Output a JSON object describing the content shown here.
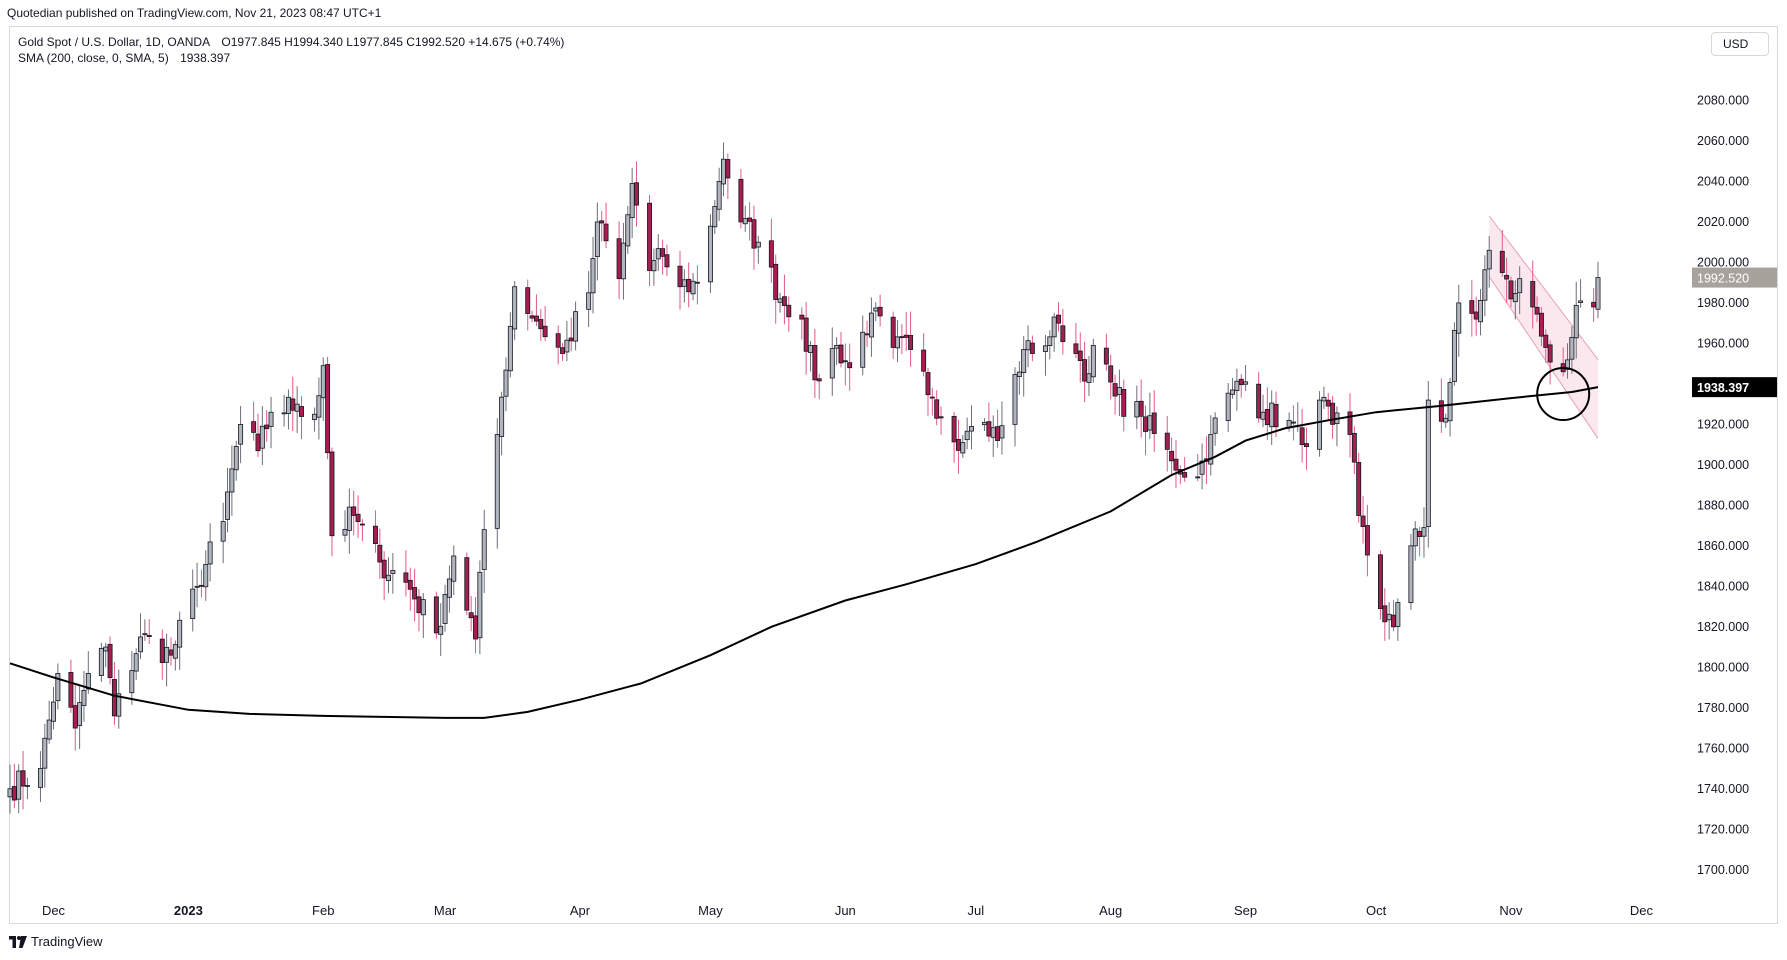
{
  "header": {
    "published_line": "Quotedian published on TradingView.com, Nov 21, 2023 08:47 UTC+1"
  },
  "legend": {
    "symbol_line": "Gold Spot / U.S. Dollar, 1D, OANDA",
    "ohlc": {
      "open": "O1977.845",
      "high": "H1994.340",
      "low": "L1977.845",
      "close": "C1992.520",
      "change": "+14.675 (+0.74%)"
    },
    "indicator_line": "SMA (200, close, 0, SMA, 5)",
    "indicator_value": "1938.397"
  },
  "currency_button": {
    "label": "USD"
  },
  "footer": {
    "brand": "TradingView"
  },
  "colors": {
    "up_body": "#b2b5be",
    "down_body": "#a61e4d",
    "down_wick": "#e05a88",
    "outline": "#131722",
    "sma": "#000000",
    "channel_fill": "#f8d5e0",
    "channel_line": "#e6a0b6",
    "last_price_bg": "#a8a29c",
    "sma_label_bg": "#000000"
  },
  "chart_data": {
    "type": "candlestick",
    "title": "Gold Spot / U.S. Dollar, 1D, OANDA",
    "ylim": [
      1690,
      2100
    ],
    "y_ticks": [
      "1700.000",
      "1720.000",
      "1740.000",
      "1760.000",
      "1780.000",
      "1800.000",
      "1820.000",
      "1840.000",
      "1860.000",
      "1880.000",
      "1900.000",
      "1920.000",
      "1940.000",
      "1960.000",
      "1980.000",
      "2000.000",
      "2020.000",
      "2040.000",
      "2060.000",
      "2080.000"
    ],
    "x_labels": [
      "Dec",
      "2023",
      "Feb",
      "Mar",
      "Apr",
      "May",
      "Jun",
      "Jul",
      "Aug",
      "Sep",
      "Oct",
      "Nov",
      "Dec"
    ],
    "x_label_dates": [
      "2022-12-01",
      "2023-01-01",
      "2023-02-01",
      "2023-03-01",
      "2023-04-01",
      "2023-05-01",
      "2023-06-01",
      "2023-07-01",
      "2023-08-01",
      "2023-09-01",
      "2023-10-01",
      "2023-11-01",
      "2023-12-01"
    ],
    "date_range": [
      "2022-11-21",
      "2023-12-11"
    ],
    "price_anchors": [
      [
        "2022-11-21",
        1740
      ],
      [
        "2022-11-28",
        1750
      ],
      [
        "2022-12-02",
        1797
      ],
      [
        "2022-12-06",
        1770
      ],
      [
        "2022-12-09",
        1797
      ],
      [
        "2022-12-13",
        1810
      ],
      [
        "2022-12-15",
        1776
      ],
      [
        "2022-12-21",
        1815
      ],
      [
        "2022-12-28",
        1806
      ],
      [
        "2023-01-03",
        1840
      ],
      [
        "2023-01-09",
        1872
      ],
      [
        "2023-01-13",
        1920
      ],
      [
        "2023-01-17",
        1907
      ],
      [
        "2023-01-20",
        1926
      ],
      [
        "2023-01-26",
        1930
      ],
      [
        "2023-01-30",
        1925
      ],
      [
        "2023-02-01",
        1949
      ],
      [
        "2023-02-03",
        1865
      ],
      [
        "2023-02-08",
        1875
      ],
      [
        "2023-02-14",
        1852
      ],
      [
        "2023-02-20",
        1842
      ],
      [
        "2023-02-27",
        1817
      ],
      [
        "2023-03-01",
        1836
      ],
      [
        "2023-03-03",
        1855
      ],
      [
        "2023-03-08",
        1814
      ],
      [
        "2023-03-10",
        1868
      ],
      [
        "2023-03-13",
        1915
      ],
      [
        "2023-03-17",
        1988
      ],
      [
        "2023-03-22",
        1971
      ],
      [
        "2023-03-28",
        1955
      ],
      [
        "2023-04-03",
        1985
      ],
      [
        "2023-04-05",
        2020
      ],
      [
        "2023-04-10",
        1992
      ],
      [
        "2023-04-13",
        2039
      ],
      [
        "2023-04-17",
        1996
      ],
      [
        "2023-04-20",
        2003
      ],
      [
        "2023-04-24",
        1988
      ],
      [
        "2023-04-28",
        1990
      ],
      [
        "2023-05-03",
        2040
      ],
      [
        "2023-05-04",
        2051
      ],
      [
        "2023-05-08",
        2020
      ],
      [
        "2023-05-12",
        2010
      ],
      [
        "2023-05-17",
        1982
      ],
      [
        "2023-05-22",
        1972
      ],
      [
        "2023-05-25",
        1942
      ],
      [
        "2023-05-30",
        1959
      ],
      [
        "2023-06-02",
        1948
      ],
      [
        "2023-06-07",
        1975
      ],
      [
        "2023-06-12",
        1958
      ],
      [
        "2023-06-16",
        1957
      ],
      [
        "2023-06-21",
        1933
      ],
      [
        "2023-06-28",
        1911
      ],
      [
        "2023-06-30",
        1919
      ],
      [
        "2023-07-03",
        1921
      ],
      [
        "2023-07-06",
        1912
      ],
      [
        "2023-07-12",
        1957
      ],
      [
        "2023-07-14",
        1955
      ],
      [
        "2023-07-20",
        1970
      ],
      [
        "2023-07-24",
        1955
      ],
      [
        "2023-07-27",
        1945
      ],
      [
        "2023-07-28",
        1959
      ],
      [
        "2023-08-02",
        1934
      ],
      [
        "2023-08-08",
        1924
      ],
      [
        "2023-08-15",
        1902
      ],
      [
        "2023-08-21",
        1894
      ],
      [
        "2023-08-24",
        1915
      ],
      [
        "2023-08-29",
        1937
      ],
      [
        "2023-09-01",
        1941
      ],
      [
        "2023-09-05",
        1926
      ],
      [
        "2023-09-11",
        1922
      ],
      [
        "2023-09-14",
        1910
      ],
      [
        "2023-09-18",
        1932
      ],
      [
        "2023-09-21",
        1920
      ],
      [
        "2023-09-25",
        1915
      ],
      [
        "2023-09-27",
        1875
      ],
      [
        "2023-10-02",
        1829
      ],
      [
        "2023-10-05",
        1820
      ],
      [
        "2023-10-06",
        1832
      ],
      [
        "2023-10-09",
        1860
      ],
      [
        "2023-10-12",
        1869
      ],
      [
        "2023-10-13",
        1932
      ],
      [
        "2023-10-17",
        1923
      ],
      [
        "2023-10-20",
        1980
      ],
      [
        "2023-10-24",
        1972
      ],
      [
        "2023-10-27",
        2006
      ],
      [
        "2023-10-30",
        1995
      ],
      [
        "2023-11-01",
        1982
      ],
      [
        "2023-11-03",
        1992
      ],
      [
        "2023-11-06",
        1978
      ],
      [
        "2023-11-09",
        1958
      ],
      [
        "2023-11-13",
        1946
      ],
      [
        "2023-11-15",
        1963
      ],
      [
        "2023-11-17",
        1981
      ],
      [
        "2023-11-20",
        1978
      ],
      [
        "2023-11-21",
        1992.52
      ]
    ],
    "sma_200": [
      [
        "2022-11-21",
        1802
      ],
      [
        "2022-12-01",
        1795
      ],
      [
        "2022-12-15",
        1786
      ],
      [
        "2023-01-01",
        1779
      ],
      [
        "2023-01-15",
        1777
      ],
      [
        "2023-02-01",
        1776
      ],
      [
        "2023-02-15",
        1775.5
      ],
      [
        "2023-03-01",
        1775
      ],
      [
        "2023-03-10",
        1775
      ],
      [
        "2023-03-20",
        1778
      ],
      [
        "2023-04-01",
        1784
      ],
      [
        "2023-04-15",
        1792
      ],
      [
        "2023-05-01",
        1806
      ],
      [
        "2023-05-15",
        1820
      ],
      [
        "2023-06-01",
        1833
      ],
      [
        "2023-06-15",
        1841
      ],
      [
        "2023-07-01",
        1851
      ],
      [
        "2023-07-15",
        1862
      ],
      [
        "2023-08-01",
        1877
      ],
      [
        "2023-08-15",
        1895
      ],
      [
        "2023-08-25",
        1904
      ],
      [
        "2023-09-01",
        1912
      ],
      [
        "2023-09-10",
        1918
      ],
      [
        "2023-09-20",
        1922
      ],
      [
        "2023-10-01",
        1926
      ],
      [
        "2023-10-15",
        1929
      ],
      [
        "2023-11-01",
        1933
      ],
      [
        "2023-11-15",
        1936
      ],
      [
        "2023-11-21",
        1938.397
      ]
    ],
    "channel": {
      "upper": [
        [
          "2023-10-27",
          2023
        ],
        [
          "2023-11-21",
          1952
        ]
      ],
      "lower": [
        [
          "2023-10-27",
          1993
        ],
        [
          "2023-11-21",
          1913
        ]
      ]
    },
    "highlight_circle": {
      "date": "2023-11-13",
      "price": 1935
    },
    "last_price_label": "1992.520",
    "sma_label": "1938.397"
  }
}
